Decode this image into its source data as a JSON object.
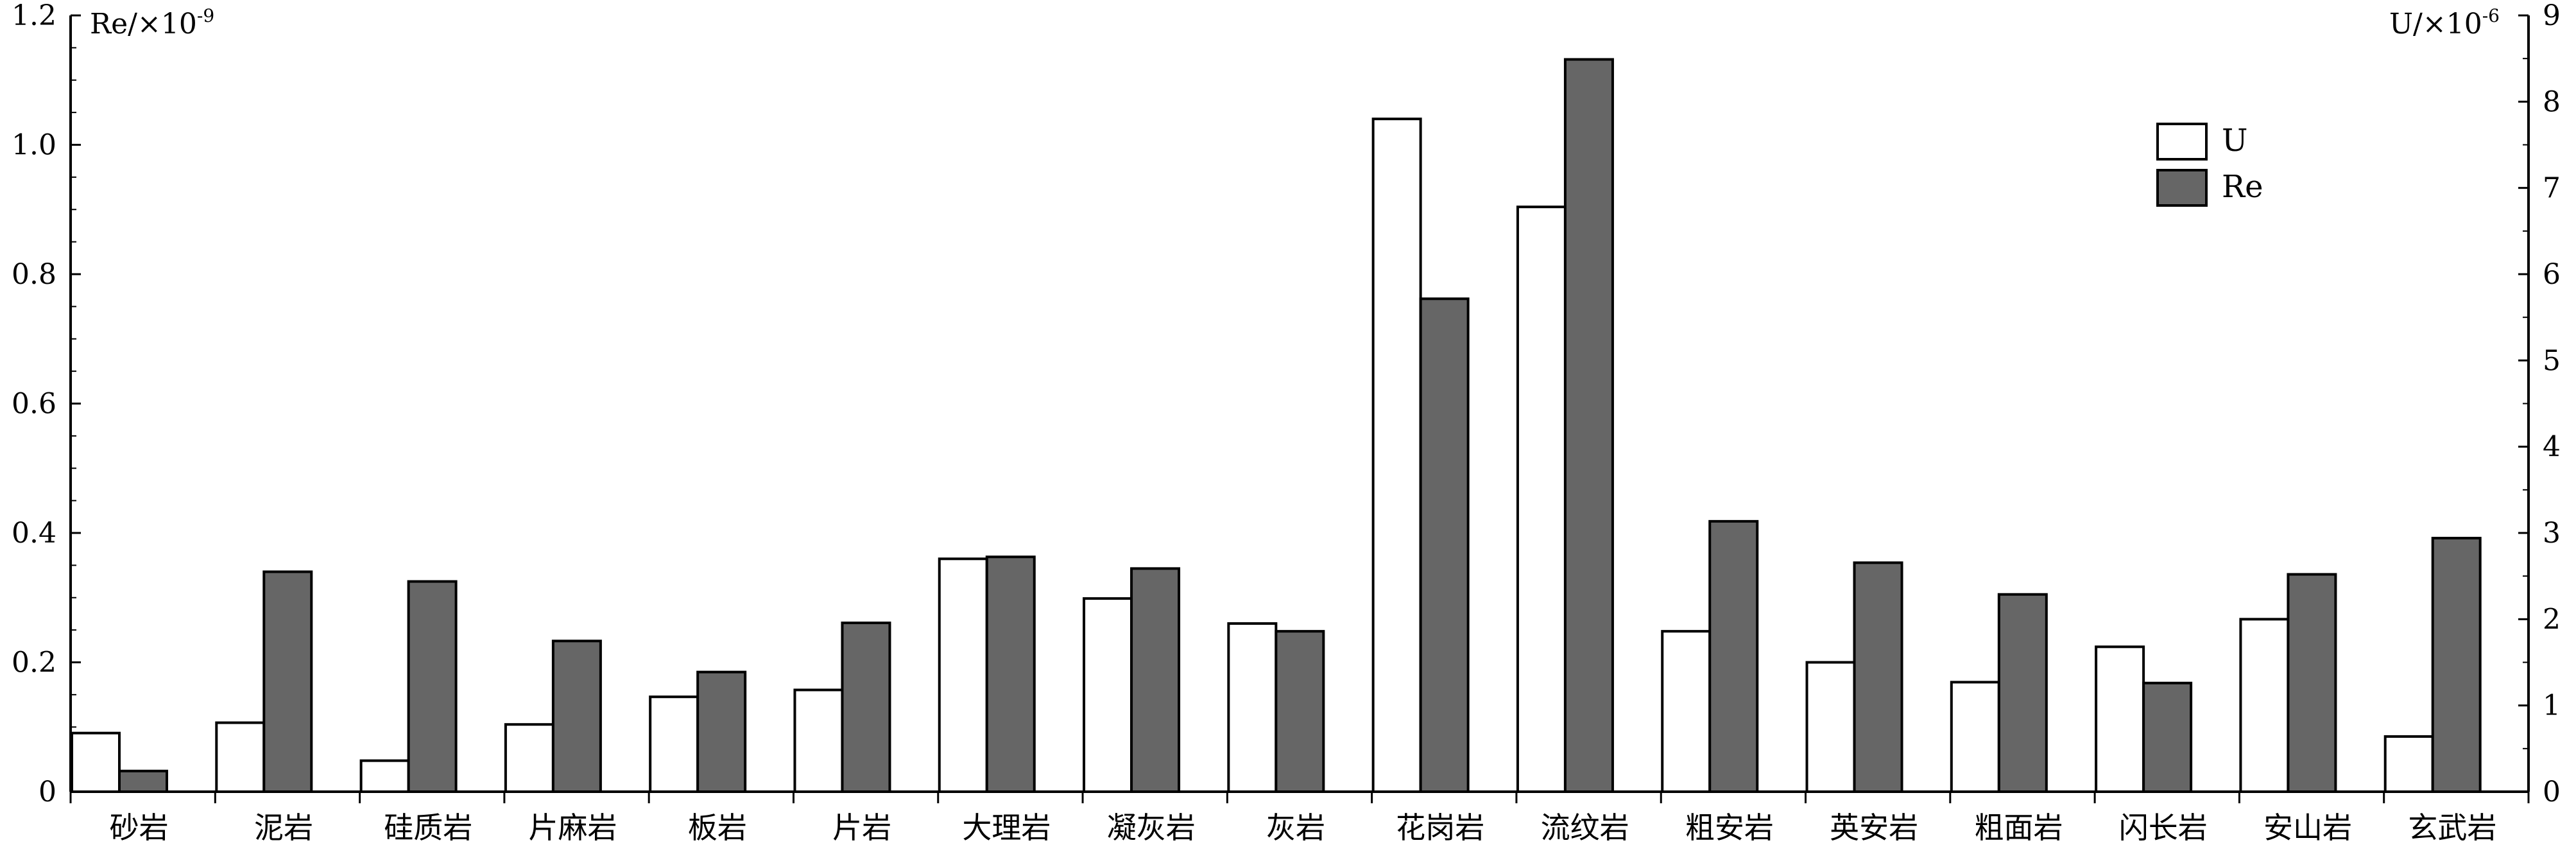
{
  "chart_data": {
    "type": "bar",
    "categories": [
      "砂岩",
      "泥岩",
      "硅质岩",
      "片麻岩",
      "板岩",
      "片岩",
      "大理岩",
      "凝灰岩",
      "灰岩",
      "花岗岩",
      "流纹岩",
      "粗安岩",
      "英安岩",
      "粗面岩",
      "闪长岩",
      "安山岩",
      "玄武岩"
    ],
    "series": [
      {
        "name": "U",
        "axis": "right",
        "color": "#ffffff",
        "values": [
          0.68,
          0.8,
          0.36,
          0.78,
          1.1,
          1.18,
          2.7,
          2.24,
          1.95,
          7.8,
          6.78,
          1.86,
          1.5,
          1.27,
          1.68,
          2.0,
          0.64
        ]
      },
      {
        "name": "Re",
        "axis": "left",
        "color": "#666666",
        "values": [
          0.032,
          0.34,
          0.325,
          0.233,
          0.185,
          0.261,
          0.363,
          0.345,
          0.248,
          0.762,
          1.132,
          0.418,
          0.354,
          0.305,
          0.168,
          0.336,
          0.392
        ]
      }
    ],
    "left_axis": {
      "label_main": "Re/×10",
      "label_exp": "-9",
      "ylim": [
        0,
        1.2
      ],
      "ticks": [
        "0",
        "0.2",
        "0.4",
        "0.6",
        "0.8",
        "1.0",
        "1.2"
      ]
    },
    "right_axis": {
      "label_main": "U/×10",
      "label_exp": "-6",
      "ylim": [
        0,
        9
      ],
      "ticks": [
        "0",
        "1",
        "2",
        "3",
        "4",
        "5",
        "6",
        "7",
        "8",
        "9"
      ]
    },
    "legend": {
      "position": "top-right",
      "items": [
        "U",
        "Re"
      ]
    }
  }
}
